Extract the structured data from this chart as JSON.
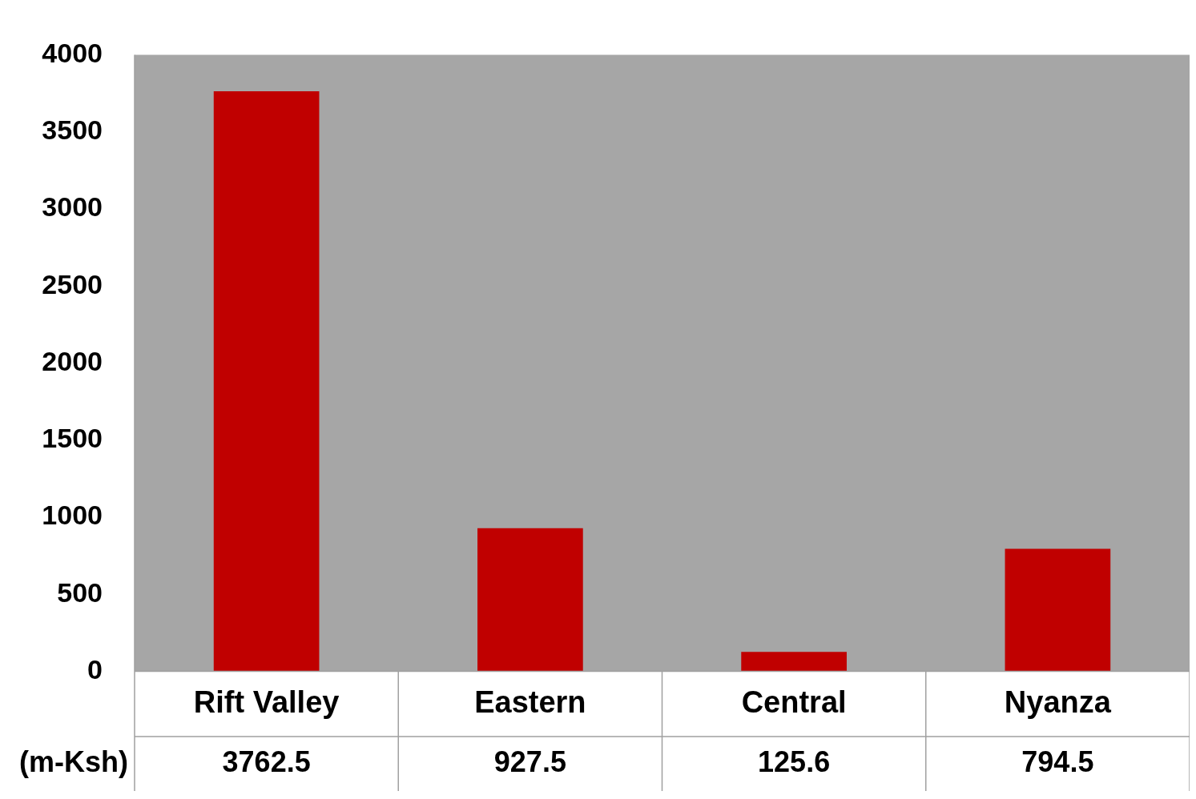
{
  "chart_data": {
    "type": "bar",
    "categories": [
      "Rift Valley",
      "Eastern",
      "Central",
      "Nyanza"
    ],
    "values": [
      3762.5,
      927.5,
      125.6,
      794.5
    ],
    "color": "#c00000",
    "ylim": [
      0,
      4000
    ],
    "yticks": [
      0,
      500,
      1000,
      1500,
      2000,
      2500,
      3000,
      3500,
      4000
    ],
    "grid": false,
    "legend": false,
    "data_labels": true,
    "annotations": [
      "(m-Ksh)"
    ]
  }
}
